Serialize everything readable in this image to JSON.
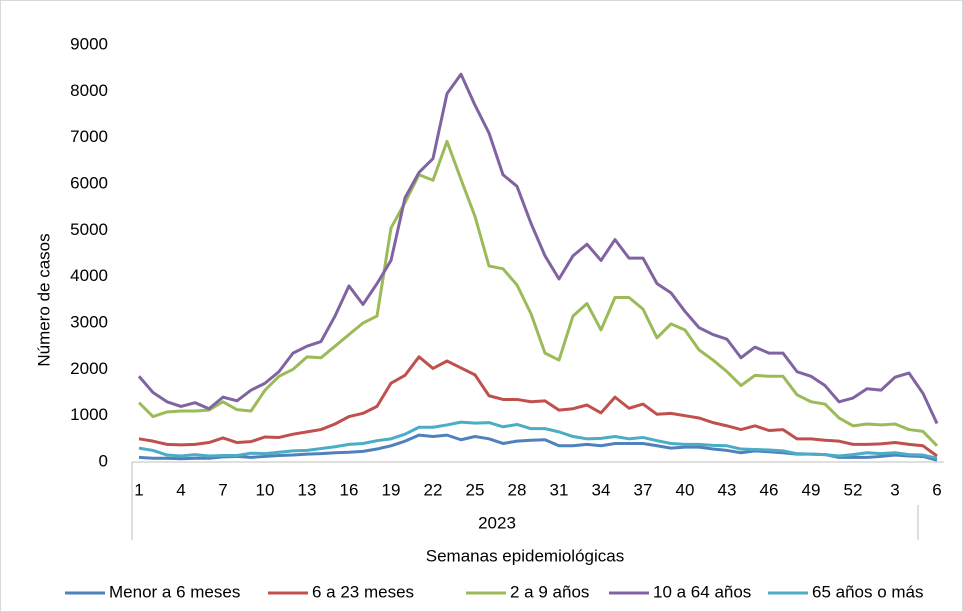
{
  "chart_data": {
    "type": "line",
    "y_label": "Número de casos",
    "x_label": "Semanas epidemiológicas",
    "category_group": "2023",
    "categories": [
      "1",
      null,
      null,
      "4",
      null,
      null,
      "7",
      null,
      null,
      "10",
      null,
      null,
      "13",
      null,
      null,
      "16",
      null,
      null,
      "19",
      null,
      null,
      "22",
      null,
      null,
      "25",
      null,
      null,
      "28",
      null,
      null,
      "31",
      null,
      null,
      "34",
      null,
      null,
      "37",
      null,
      null,
      "40",
      null,
      null,
      "43",
      null,
      null,
      "46",
      null,
      null,
      "49",
      null,
      null,
      "52",
      null,
      null,
      "3",
      null,
      null,
      "6"
    ],
    "ylim": [
      0,
      9000
    ],
    "yticks": [
      0,
      1000,
      2000,
      3000,
      4000,
      5000,
      6000,
      7000,
      8000,
      9000
    ],
    "grid": false,
    "legend": "bottom",
    "series": [
      {
        "name": "Menor a 6 meses",
        "color": "#4f81bd",
        "values": [
          100,
          80,
          80,
          70,
          80,
          80,
          110,
          120,
          100,
          120,
          140,
          150,
          170,
          180,
          200,
          210,
          230,
          280,
          350,
          450,
          580,
          550,
          580,
          480,
          550,
          500,
          400,
          450,
          470,
          480,
          350,
          350,
          380,
          350,
          400,
          400,
          400,
          350,
          300,
          320,
          320,
          280,
          250,
          200,
          240,
          220,
          200,
          170,
          170,
          160,
          100,
          100,
          100,
          120,
          150,
          130,
          120,
          40
        ]
      },
      {
        "name": "6 a 23 meses",
        "color": "#c0504d",
        "values": [
          500,
          450,
          380,
          370,
          380,
          420,
          520,
          420,
          440,
          540,
          530,
          600,
          650,
          700,
          820,
          980,
          1050,
          1200,
          1700,
          1870,
          2270,
          2020,
          2180,
          2030,
          1880,
          1430,
          1350,
          1350,
          1300,
          1320,
          1120,
          1150,
          1230,
          1060,
          1400,
          1160,
          1250,
          1030,
          1050,
          1000,
          950,
          850,
          780,
          700,
          780,
          680,
          700,
          500,
          500,
          470,
          450,
          380,
          380,
          390,
          420,
          380,
          350,
          130
        ]
      },
      {
        "name": "2 a 9 años",
        "color": "#9bbb59",
        "values": [
          1280,
          980,
          1080,
          1100,
          1100,
          1120,
          1300,
          1130,
          1100,
          1550,
          1850,
          2000,
          2270,
          2250,
          2500,
          2750,
          3000,
          3150,
          5050,
          5600,
          6200,
          6080,
          6920,
          6100,
          5300,
          4230,
          4170,
          3820,
          3200,
          2350,
          2200,
          3150,
          3420,
          2850,
          3550,
          3550,
          3300,
          2680,
          2980,
          2850,
          2420,
          2200,
          1950,
          1650,
          1870,
          1850,
          1850,
          1450,
          1300,
          1250,
          950,
          780,
          820,
          800,
          820,
          700,
          660,
          350
        ]
      },
      {
        "name": "10 a 64 años",
        "color": "#8064a2",
        "values": [
          1850,
          1500,
          1300,
          1200,
          1280,
          1150,
          1400,
          1320,
          1550,
          1700,
          1950,
          2350,
          2500,
          2600,
          3150,
          3800,
          3400,
          3850,
          4350,
          5700,
          6250,
          6550,
          7950,
          8370,
          7700,
          7100,
          6200,
          5950,
          5150,
          4450,
          3950,
          4450,
          4700,
          4350,
          4800,
          4400,
          4400,
          3850,
          3650,
          3250,
          2900,
          2750,
          2650,
          2250,
          2480,
          2350,
          2350,
          1950,
          1850,
          1650,
          1300,
          1380,
          1580,
          1550,
          1830,
          1920,
          1480,
          830
        ]
      },
      {
        "name": "65 años o más",
        "color": "#4bacc6",
        "values": [
          300,
          250,
          150,
          130,
          160,
          130,
          140,
          140,
          190,
          180,
          210,
          240,
          250,
          290,
          330,
          380,
          400,
          460,
          500,
          600,
          750,
          750,
          800,
          860,
          840,
          850,
          760,
          810,
          720,
          720,
          650,
          550,
          500,
          510,
          550,
          500,
          530,
          460,
          400,
          380,
          380,
          360,
          350,
          280,
          270,
          260,
          240,
          180,
          170,
          160,
          130,
          160,
          200,
          180,
          200,
          160,
          150,
          80
        ]
      }
    ]
  }
}
